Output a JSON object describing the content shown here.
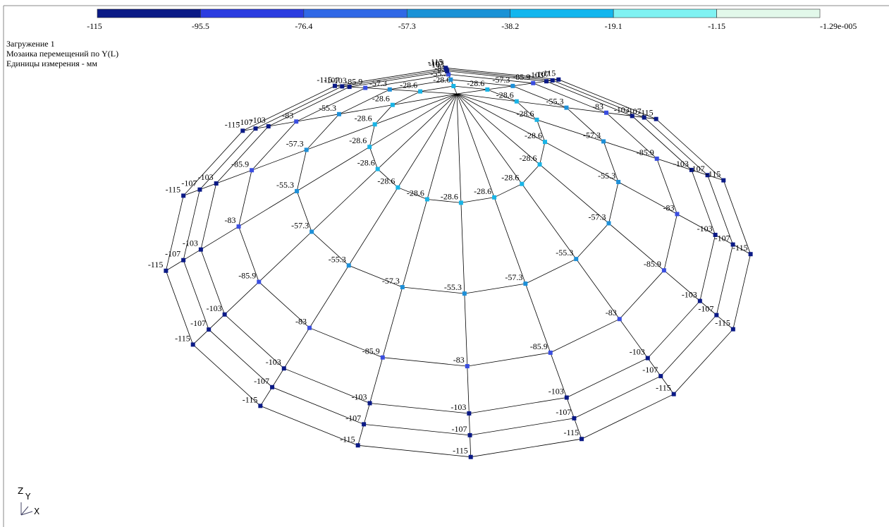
{
  "colorbar": {
    "labels": [
      "-115",
      "-95.5",
      "-76.4",
      "-57.3",
      "-38.2",
      "-19.1",
      "-1.15",
      "-1.29e-005"
    ],
    "colors": [
      "#0b1a86",
      "#2b3ce0",
      "#3068e6",
      "#1a92d6",
      "#12b6ee",
      "#80f2f2",
      "#e2f8ea"
    ]
  },
  "header": {
    "lines": [
      "Загружение  1",
      "Мозаика перемещений по Y(L)",
      "Единицы измерения - мм"
    ]
  },
  "axes_icon": {
    "z": "Z",
    "y": "Y",
    "x": "X"
  },
  "mesh": {
    "rings": [
      {
        "color": "#19b4e6",
        "labels": [
          "-28.6",
          "-28.6",
          "-28.6",
          "-28.6",
          "-28.6",
          "-28.6",
          "-28.6",
          "-28.6",
          "-28.6",
          "-28.6",
          "-28.6",
          "-28.6",
          "-28.6",
          "-28.6",
          "-28.6",
          "-28.6"
        ]
      },
      {
        "color": "#1e90d8",
        "labels": [
          "-57.3",
          "-55.3",
          "-57.3",
          "-55.3",
          "-57.3",
          "-55.3",
          "-57.3",
          "-55.3",
          "-57.3",
          "-55.3",
          "-57.3",
          "-55.3",
          "-57.3",
          "-55.3",
          "-57.3",
          "-55.3"
        ]
      },
      {
        "color": "#3a4ee0",
        "labels": [
          "-85.9",
          "-83",
          "-85.9",
          "-83",
          "-85.9",
          "-83",
          "-85.9",
          "-83",
          "-85.9",
          "-83",
          "-85.9",
          "-83",
          "-85.9",
          "-83",
          "-85.9",
          "-83"
        ]
      },
      {
        "color": "#0b1a86",
        "labels": [
          "-103",
          "-103",
          "-103",
          "-103",
          "-103",
          "-103",
          "-103",
          "-103",
          "-103",
          "-103",
          "-103",
          "-103",
          "-103",
          "-103",
          "-103",
          "-103"
        ]
      },
      {
        "color": "#0b1a86",
        "labels": [
          "-107",
          "-107",
          "-107",
          "-107",
          "-107",
          "-107",
          "-107",
          "-107",
          "-107",
          "-107",
          "-107",
          "-107",
          "-107",
          "-107",
          "-107",
          "-107"
        ]
      },
      {
        "color": "#0b1a86",
        "labels": [
          "-115",
          "-115",
          "-115",
          "-115",
          "-115",
          "-115",
          "-115",
          "-115",
          "-115",
          "-115",
          "-115",
          "-115",
          "-115",
          "-115",
          "-115",
          "-115"
        ]
      }
    ]
  }
}
